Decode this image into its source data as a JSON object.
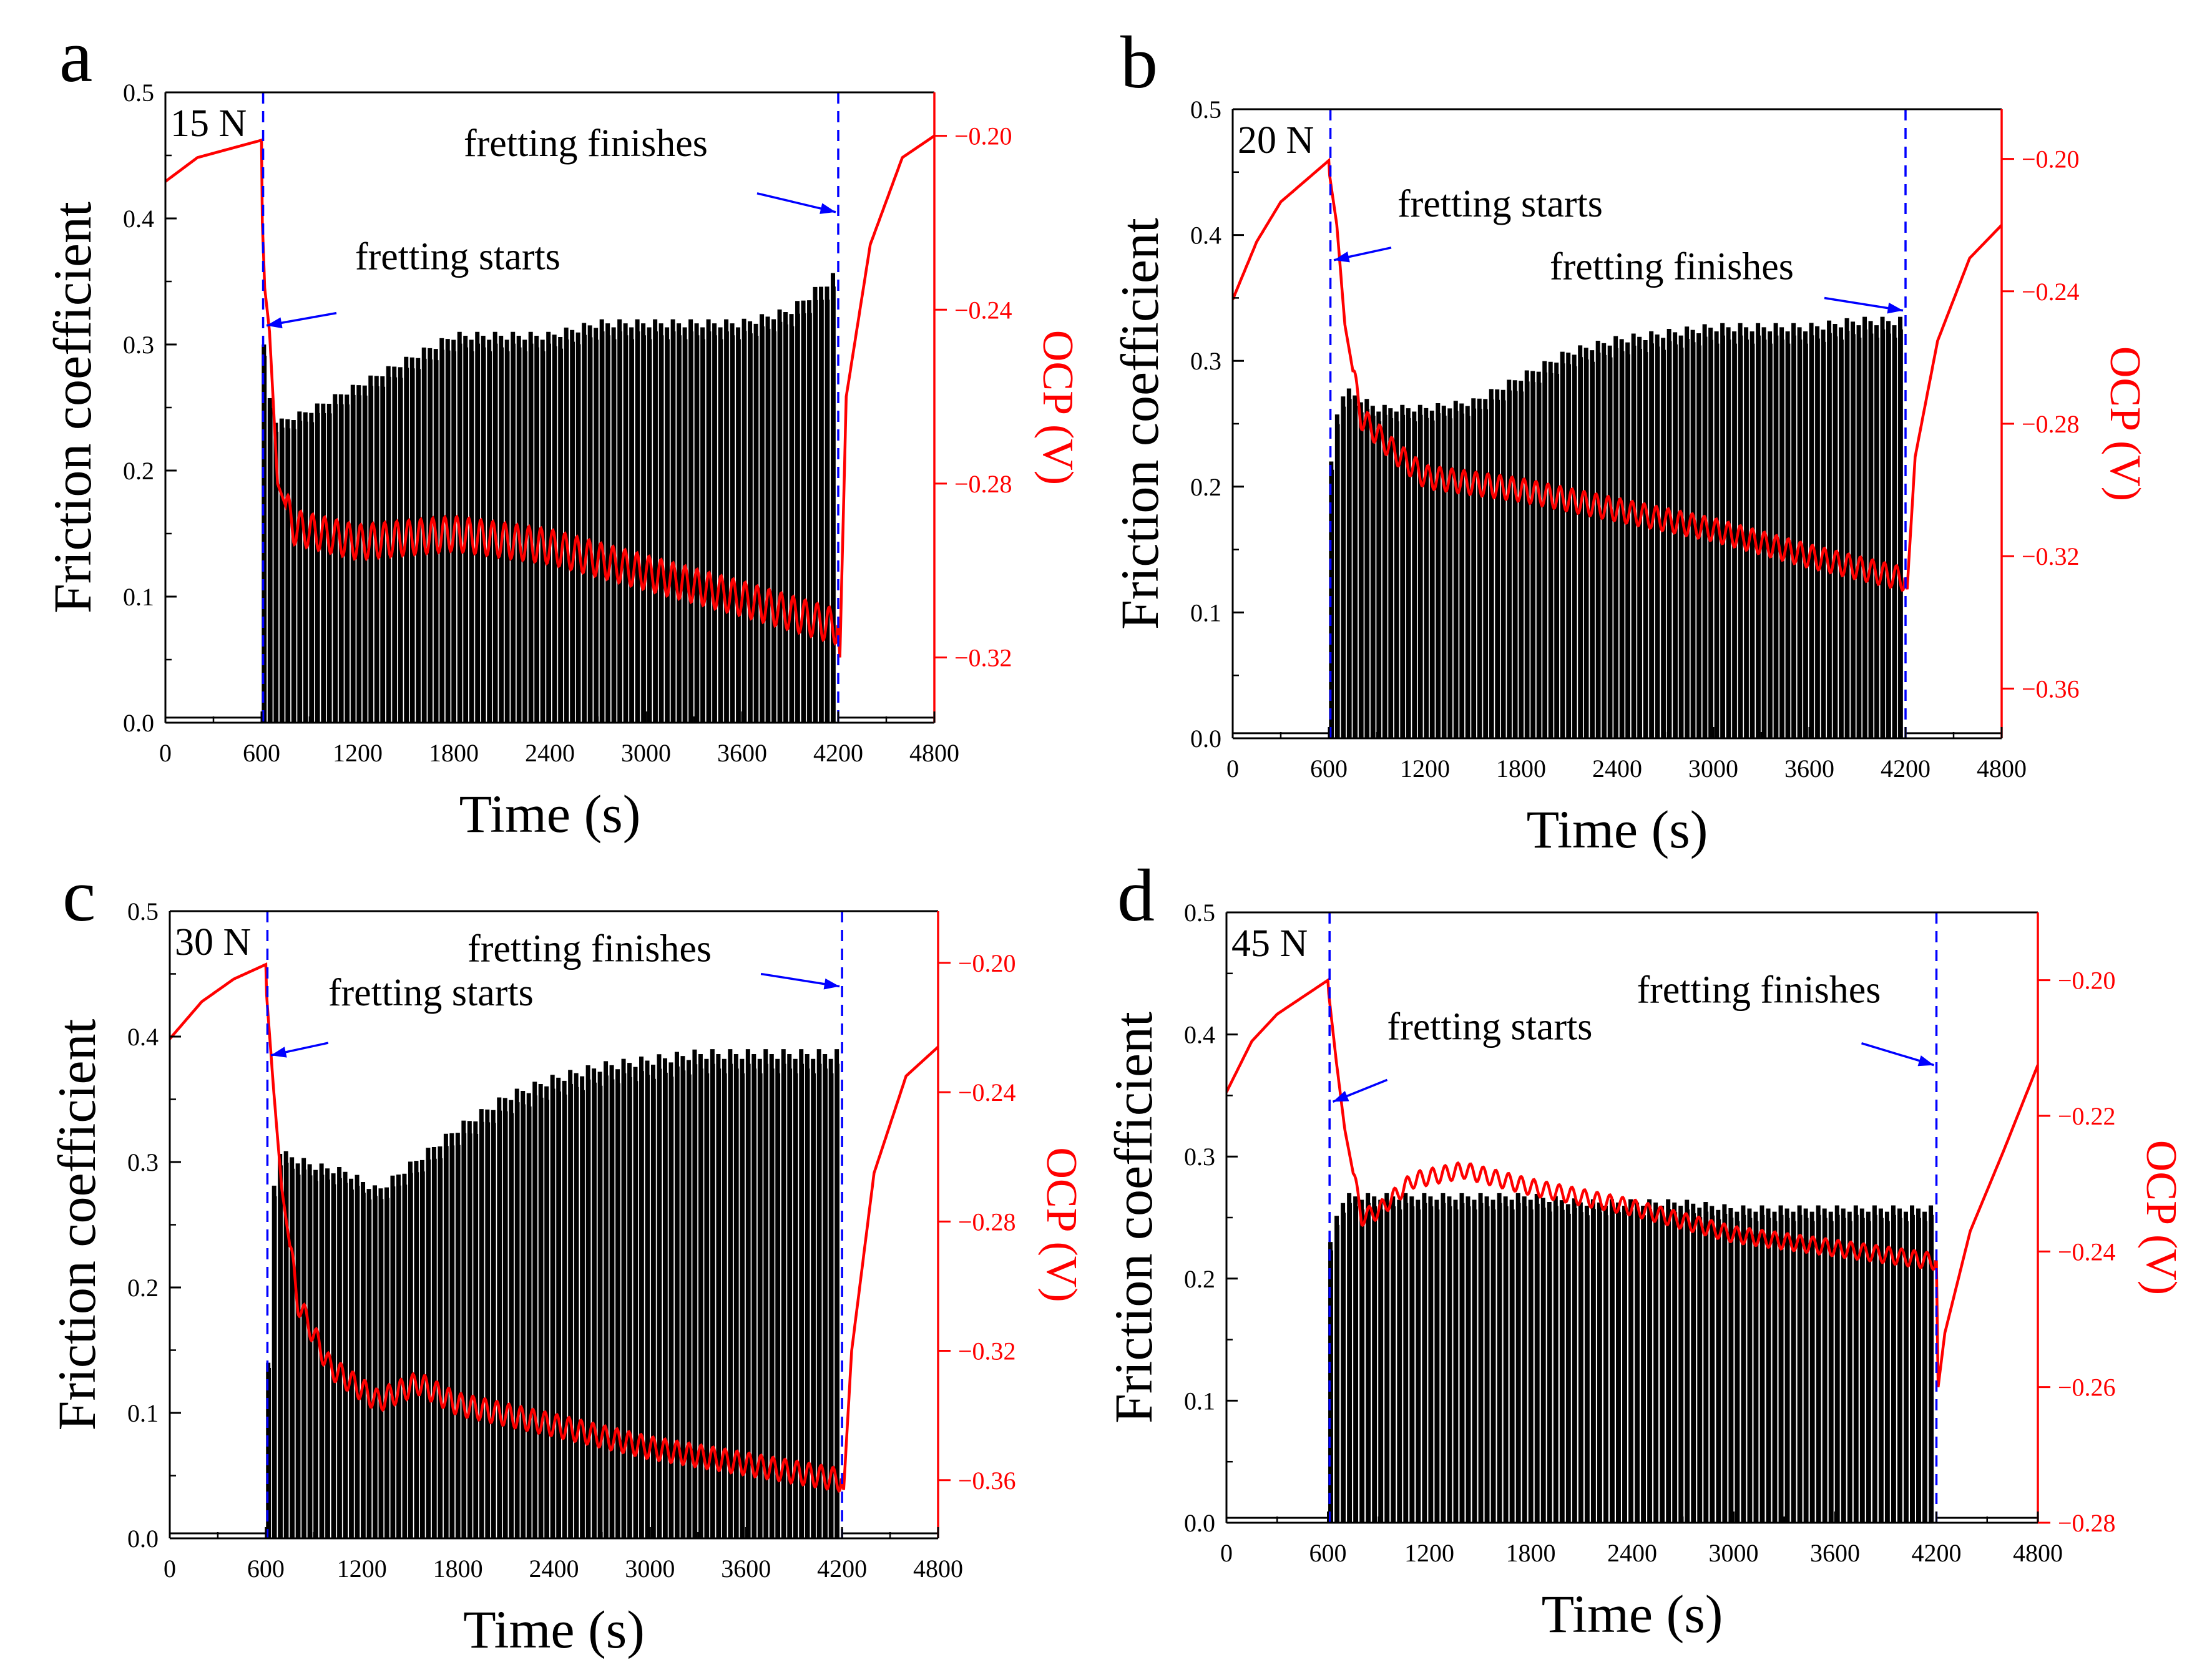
{
  "figure": {
    "colors": {
      "friction": "#000000",
      "ocp": "#ff0000",
      "marker": "#0000ff"
    },
    "x_tick_labels": [
      "0",
      "600",
      "1200",
      "1800",
      "2400",
      "3000",
      "3600",
      "4200",
      "4800"
    ],
    "friction_tick_labels": [
      "0.0",
      "0.1",
      "0.2",
      "0.3",
      "0.4",
      "0.5"
    ]
  },
  "chart_data": [
    {
      "panel": "a",
      "type": "line",
      "load_label": "15 N",
      "xlabel": "Time (s)",
      "ylabel": "Friction coefficient",
      "y2label": "OCP (V)",
      "xlim": [
        0,
        4800
      ],
      "ylim": [
        0,
        0.5
      ],
      "y2lim": [
        -0.335,
        -0.19
      ],
      "y2_ticks": [
        -0.32,
        -0.28,
        -0.24,
        -0.2
      ],
      "y2_tick_labels": [
        "−0.32",
        "−0.28",
        "−0.24",
        "−0.20"
      ],
      "fretting_start": 600,
      "fretting_end": 4200,
      "annotations": {
        "start": {
          "text": "fretting starts",
          "x": 600,
          "y": 0.32
        },
        "end": {
          "text": "fretting finishes",
          "x": 4200,
          "y": 0.41
        }
      },
      "series": [
        {
          "name": "Friction coefficient",
          "axis": "left",
          "peak_envelope": {
            "x": [
              620,
              660,
              700,
              900,
              1200,
              1500,
              1800,
              2100,
              2400,
              2700,
              3000,
              3300,
              3600,
              3900,
              4200
            ],
            "y": [
              0.3,
              0.25,
              0.24,
              0.25,
              0.27,
              0.29,
              0.31,
              0.31,
              0.31,
              0.32,
              0.32,
              0.32,
              0.32,
              0.33,
              0.36
            ]
          },
          "baseline": 0.0
        },
        {
          "name": "OCP",
          "axis": "right",
          "x": [
            0,
            200,
            400,
            600,
            605,
            620,
            650,
            700,
            800,
            1200,
            1800,
            2400,
            3000,
            3600,
            4200,
            4210,
            4250,
            4400,
            4600,
            4800
          ],
          "y": [
            -0.2105,
            -0.205,
            -0.203,
            -0.201,
            -0.22,
            -0.235,
            -0.245,
            -0.28,
            -0.29,
            -0.2935,
            -0.2915,
            -0.2945,
            -0.3005,
            -0.3065,
            -0.313,
            -0.32,
            -0.26,
            -0.225,
            -0.205,
            -0.2
          ],
          "osc_amp": 0.004,
          "osc_period": 75
        }
      ]
    },
    {
      "panel": "b",
      "type": "line",
      "load_label": "20 N",
      "xlabel": "Time (s)",
      "ylabel": "Friction coefficient",
      "y2label": "OCP (V)",
      "xlim": [
        0,
        4800
      ],
      "ylim": [
        0,
        0.5
      ],
      "y2lim": [
        -0.375,
        -0.185
      ],
      "y2_ticks": [
        -0.36,
        -0.32,
        -0.28,
        -0.24,
        -0.2
      ],
      "y2_tick_labels": [
        "−0.36",
        "−0.32",
        "−0.28",
        "−0.24",
        "−0.20"
      ],
      "fretting_start": 600,
      "fretting_end": 4200,
      "annotations": {
        "start": {
          "text": "fretting starts",
          "x": 600,
          "y": 0.385
        },
        "end": {
          "text": "fretting finishes",
          "x": 4200,
          "y": 0.345
        }
      },
      "series": [
        {
          "name": "Friction coefficient",
          "axis": "left",
          "peak_envelope": {
            "x": [
              620,
              660,
              700,
              900,
              1200,
              1500,
              1800,
              2100,
              2400,
              2700,
              3000,
              3300,
              3600,
              3900,
              4200
            ],
            "y": [
              0.22,
              0.27,
              0.28,
              0.265,
              0.265,
              0.27,
              0.29,
              0.31,
              0.32,
              0.325,
              0.33,
              0.33,
              0.33,
              0.335,
              0.335
            ]
          },
          "baseline": 0.0
        },
        {
          "name": "OCP",
          "axis": "right",
          "x": [
            0,
            150,
            300,
            600,
            605,
            650,
            700,
            800,
            1000,
            1200,
            1800,
            2400,
            3000,
            3600,
            4200,
            4210,
            4260,
            4400,
            4600,
            4800
          ],
          "y": [
            -0.2425,
            -0.225,
            -0.213,
            -0.2005,
            -0.205,
            -0.22,
            -0.25,
            -0.278,
            -0.288,
            -0.296,
            -0.3,
            -0.306,
            -0.312,
            -0.32,
            -0.327,
            -0.33,
            -0.29,
            -0.255,
            -0.23,
            -0.22
          ],
          "osc_amp": 0.0035,
          "osc_period": 75
        }
      ]
    },
    {
      "panel": "c",
      "type": "line",
      "load_label": "30 N",
      "xlabel": "Time (s)",
      "ylabel": "Friction coefficient",
      "y2label": "OCP (V)",
      "xlim": [
        0,
        4800
      ],
      "ylim": [
        0,
        0.5
      ],
      "y2lim": [
        -0.378,
        -0.184
      ],
      "y2_ticks": [
        -0.36,
        -0.32,
        -0.28,
        -0.24,
        -0.2
      ],
      "y2_tick_labels": [
        "−0.36",
        "−0.32",
        "−0.28",
        "−0.24",
        "−0.20"
      ],
      "fretting_start": 600,
      "fretting_end": 4200,
      "annotations": {
        "start": {
          "text": "fretting starts",
          "x": 600,
          "y": 0.39
        },
        "end": {
          "text": "fretting finishes",
          "x": 4200,
          "y": 0.445
        }
      },
      "series": [
        {
          "name": "Friction coefficient",
          "axis": "left",
          "peak_envelope": {
            "x": [
              620,
              660,
              700,
              900,
              1100,
              1300,
              1500,
              1800,
              2100,
              2400,
              2700,
              3000,
              3300,
              3600,
              3900,
              4200
            ],
            "y": [
              0.14,
              0.32,
              0.31,
              0.3,
              0.295,
              0.28,
              0.3,
              0.33,
              0.355,
              0.37,
              0.38,
              0.385,
              0.39,
              0.39,
              0.39,
              0.39
            ]
          },
          "baseline": 0.0
        },
        {
          "name": "OCP",
          "axis": "right",
          "x": [
            0,
            200,
            400,
            600,
            605,
            650,
            700,
            800,
            1000,
            1300,
            1550,
            1800,
            2400,
            3000,
            3600,
            4200,
            4210,
            4260,
            4400,
            4600,
            4800
          ],
          "y": [
            -0.2235,
            -0.212,
            -0.205,
            -0.2005,
            -0.21,
            -0.24,
            -0.27,
            -0.305,
            -0.325,
            -0.3355,
            -0.33,
            -0.3365,
            -0.343,
            -0.35,
            -0.355,
            -0.36,
            -0.363,
            -0.32,
            -0.265,
            -0.235,
            -0.226
          ],
          "osc_amp": 0.0035,
          "osc_period": 75
        }
      ]
    },
    {
      "panel": "d",
      "type": "line",
      "load_label": "45 N",
      "xlabel": "Time (s)",
      "ylabel": "Friction coefficient",
      "y2label": "OCP (V)",
      "xlim": [
        0,
        4800
      ],
      "ylim": [
        0,
        0.5
      ],
      "y2lim": [
        -0.28,
        -0.19
      ],
      "y2_ticks": [
        -0.28,
        -0.26,
        -0.24,
        -0.22,
        -0.2
      ],
      "y2_tick_labels": [
        "−0.28",
        "−0.26",
        "−0.24",
        "−0.22",
        "−0.20"
      ],
      "fretting_start": 600,
      "fretting_end": 4200,
      "annotations": {
        "start": {
          "text": "fretting starts",
          "x": 600,
          "y": 0.35
        },
        "end": {
          "text": "fretting finishes",
          "x": 4200,
          "y": 0.38
        }
      },
      "series": [
        {
          "name": "Friction coefficient",
          "axis": "left",
          "peak_envelope": {
            "x": [
              620,
              660,
              700,
              900,
              1200,
              1500,
              1800,
              2100,
              2400,
              2700,
              3000,
              3300,
              3600,
              3900,
              4200
            ],
            "y": [
              0.23,
              0.26,
              0.27,
              0.27,
              0.27,
              0.27,
              0.27,
              0.265,
              0.265,
              0.265,
              0.26,
              0.26,
              0.26,
              0.26,
              0.26
            ]
          },
          "baseline": 0.0
        },
        {
          "name": "OCP",
          "axis": "right",
          "x": [
            0,
            150,
            300,
            600,
            605,
            650,
            700,
            800,
            900,
            1100,
            1400,
            1800,
            2400,
            3000,
            3600,
            4200,
            4210,
            4250,
            4400,
            4600,
            4800
          ],
          "y": [
            -0.2165,
            -0.209,
            -0.205,
            -0.2,
            -0.202,
            -0.212,
            -0.222,
            -0.235,
            -0.234,
            -0.2295,
            -0.228,
            -0.2305,
            -0.2335,
            -0.2375,
            -0.2395,
            -0.2415,
            -0.26,
            -0.252,
            -0.237,
            -0.225,
            -0.2125
          ],
          "osc_amp": 0.0012,
          "osc_period": 75
        }
      ]
    }
  ]
}
